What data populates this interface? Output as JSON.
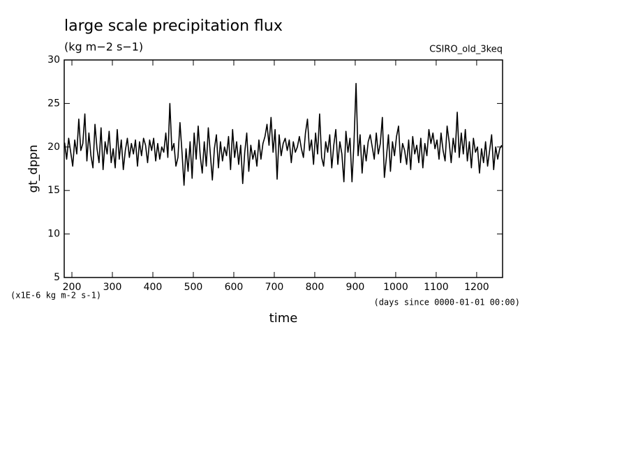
{
  "chart_data": {
    "type": "line",
    "title": "large scale precipitation flux",
    "subtitle": "(kg m−2 s−1)",
    "source_label": "CSIRO_old_3keq",
    "ylabel": "gt_dppn",
    "xlabel": "time",
    "y_units_note": "(x1E-6 kg m-2 s-1)",
    "x_units_note": "(days since 0000-01-01 00:00)",
    "xlim": [
      181,
      1264
    ],
    "ylim": [
      5,
      30
    ],
    "xticks": [
      200,
      300,
      400,
      500,
      600,
      700,
      800,
      900,
      1000,
      1100,
      1200
    ],
    "yticks": [
      5,
      10,
      15,
      20,
      25,
      30
    ],
    "series": [
      {
        "color": "#000000",
        "x": [
          182,
          187,
          192,
          197,
          202,
          207,
          212,
          217,
          222,
          227,
          232,
          237,
          242,
          247,
          252,
          257,
          262,
          267,
          272,
          277,
          282,
          287,
          292,
          297,
          302,
          307,
          312,
          317,
          322,
          327,
          332,
          337,
          342,
          347,
          352,
          357,
          362,
          367,
          372,
          377,
          382,
          387,
          392,
          397,
          402,
          407,
          412,
          417,
          422,
          427,
          432,
          437,
          442,
          447,
          452,
          457,
          462,
          467,
          472,
          477,
          482,
          487,
          492,
          497,
          502,
          507,
          512,
          517,
          522,
          527,
          532,
          537,
          542,
          547,
          552,
          557,
          562,
          567,
          572,
          577,
          582,
          587,
          592,
          597,
          602,
          607,
          612,
          617,
          622,
          627,
          632,
          637,
          642,
          647,
          652,
          657,
          662,
          667,
          672,
          677,
          682,
          687,
          692,
          697,
          702,
          707,
          712,
          717,
          722,
          727,
          732,
          737,
          742,
          747,
          752,
          757,
          762,
          767,
          772,
          777,
          782,
          787,
          792,
          797,
          802,
          807,
          812,
          817,
          822,
          827,
          832,
          837,
          842,
          847,
          852,
          857,
          862,
          867,
          872,
          877,
          882,
          887,
          892,
          897,
          902,
          907,
          912,
          917,
          922,
          927,
          932,
          937,
          942,
          947,
          952,
          957,
          962,
          967,
          972,
          977,
          982,
          987,
          992,
          997,
          1002,
          1007,
          1012,
          1017,
          1022,
          1027,
          1032,
          1037,
          1042,
          1047,
          1052,
          1057,
          1062,
          1067,
          1072,
          1077,
          1082,
          1087,
          1092,
          1097,
          1102,
          1107,
          1112,
          1117,
          1122,
          1127,
          1132,
          1137,
          1142,
          1147,
          1152,
          1157,
          1162,
          1167,
          1172,
          1177,
          1182,
          1187,
          1192,
          1197,
          1202,
          1207,
          1212,
          1217,
          1222,
          1227,
          1232,
          1237,
          1242,
          1247,
          1252,
          1257,
          1262
        ],
        "values": [
          20.5,
          18.6,
          21,
          19.4,
          17.8,
          20.8,
          19.2,
          23.2,
          19.6,
          20.4,
          23.8,
          18.4,
          21.6,
          19,
          17.6,
          22.6,
          19.8,
          18.2,
          22.2,
          17.4,
          20.6,
          19.2,
          21.8,
          18.2,
          19.8,
          17.6,
          22,
          18.6,
          20.8,
          17.4,
          19.6,
          21,
          18.8,
          20.4,
          19.2,
          20.8,
          17.8,
          20.6,
          19,
          21,
          20.2,
          18.2,
          20.8,
          19.6,
          21,
          18.4,
          20.4,
          18.6,
          20,
          19.4,
          21.6,
          18.8,
          25,
          19.6,
          20.4,
          17.8,
          18.8,
          22.8,
          19.4,
          15.6,
          19.8,
          17.2,
          20.6,
          16.4,
          21.6,
          18.6,
          22.4,
          19,
          17,
          20.6,
          17.8,
          22.2,
          19.2,
          16.2,
          19.8,
          21.4,
          17.6,
          20.6,
          18.4,
          20,
          19,
          21.2,
          17.4,
          22,
          18.8,
          20.6,
          18,
          20.2,
          15.8,
          19.4,
          21.6,
          17.2,
          20.2,
          18.6,
          19.6,
          17.8,
          20.8,
          18.6,
          20.4,
          21.2,
          22.6,
          20.2,
          23.4,
          19.4,
          22,
          16.3,
          21.4,
          19,
          20.4,
          21,
          19.6,
          20.8,
          18.2,
          20.6,
          19.4,
          20,
          21.2,
          19.8,
          18.8,
          21.6,
          23.2,
          19.6,
          20.8,
          18,
          21.6,
          19.2,
          23.8,
          18.8,
          17.8,
          20.6,
          19.4,
          21.4,
          17.6,
          20.2,
          22,
          18,
          20.6,
          19.2,
          16,
          21.8,
          19.4,
          21,
          16,
          20.6,
          27.3,
          19,
          21.4,
          17,
          20.2,
          18.4,
          20.6,
          21.4,
          20,
          18.6,
          21.6,
          19.2,
          20.4,
          23.4,
          16.5,
          18.8,
          21.4,
          17.2,
          20.6,
          19,
          21.2,
          22.4,
          18.2,
          20.4,
          19.6,
          18,
          20.8,
          17.4,
          21.2,
          19.2,
          20.2,
          18.2,
          21,
          17.6,
          20.4,
          19,
          22,
          20.4,
          21.6,
          19.8,
          20.8,
          18.6,
          21.6,
          19.6,
          18.4,
          22.4,
          20.6,
          18.2,
          21,
          19.4,
          24,
          18.8,
          21.6,
          19.2,
          22,
          18.4,
          20.6,
          17.6,
          21,
          19.4,
          20,
          17,
          19.8,
          18.2,
          20.6,
          17.8,
          19.6,
          21.4,
          17.4,
          20,
          18.6,
          19.8,
          20.2
        ]
      }
    ]
  }
}
